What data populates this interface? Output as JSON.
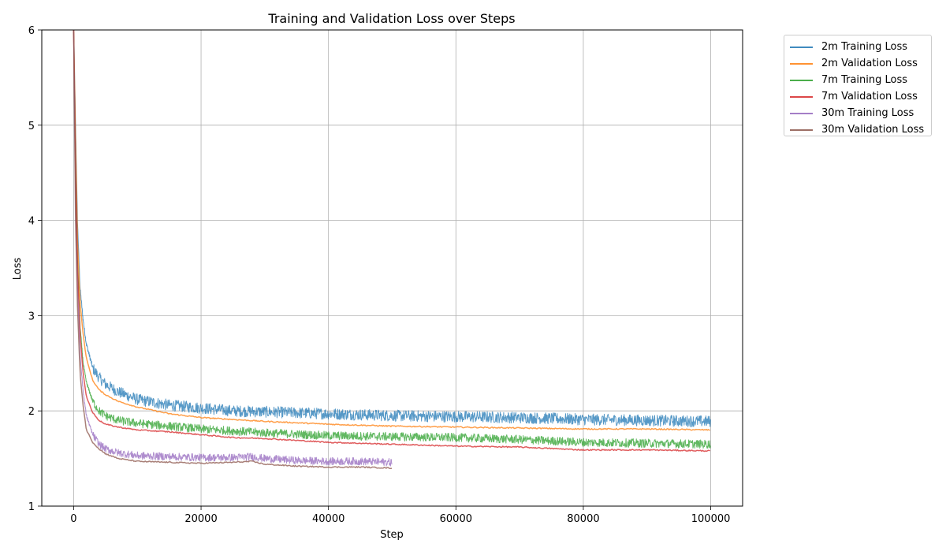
{
  "chart_data": {
    "type": "line",
    "title": "Training and Validation Loss over Steps",
    "xlabel": "Step",
    "ylabel": "Loss",
    "xlim": [
      -5000,
      105000
    ],
    "ylim": [
      1,
      6
    ],
    "x_ticks": [
      0,
      20000,
      40000,
      60000,
      80000,
      100000
    ],
    "y_ticks": [
      1,
      2,
      3,
      4,
      5,
      6
    ],
    "grid": true,
    "legend_position": "outside-top-right",
    "series": [
      {
        "name": "2m Training Loss",
        "color": "#1f77b4",
        "noisy": true,
        "noise_band": 0.06,
        "x": [
          0,
          300,
          600,
          1000,
          1500,
          2000,
          3000,
          4000,
          5000,
          7000,
          10000,
          15000,
          20000,
          25000,
          30000,
          40000,
          50000,
          60000,
          70000,
          80000,
          90000,
          100000
        ],
        "y": [
          6.1,
          5.0,
          4.0,
          3.3,
          2.95,
          2.7,
          2.45,
          2.35,
          2.28,
          2.2,
          2.12,
          2.06,
          2.03,
          2.0,
          1.99,
          1.97,
          1.95,
          1.94,
          1.93,
          1.91,
          1.9,
          1.89
        ]
      },
      {
        "name": "2m Validation Loss",
        "color": "#ff7f0e",
        "noisy": false,
        "x": [
          0,
          300,
          600,
          1000,
          1500,
          2000,
          3000,
          4000,
          5000,
          7000,
          10000,
          15000,
          20000,
          25000,
          30000,
          40000,
          50000,
          60000,
          70000,
          80000,
          90000,
          100000
        ],
        "y": [
          6.0,
          4.8,
          3.8,
          3.15,
          2.8,
          2.55,
          2.32,
          2.22,
          2.17,
          2.1,
          2.04,
          1.97,
          1.93,
          1.91,
          1.89,
          1.86,
          1.84,
          1.83,
          1.82,
          1.81,
          1.81,
          1.8
        ]
      },
      {
        "name": "7m Training Loss",
        "color": "#2ca02c",
        "noisy": true,
        "noise_band": 0.045,
        "x": [
          0,
          300,
          600,
          1000,
          1500,
          2000,
          3000,
          4000,
          5000,
          7000,
          10000,
          15000,
          20000,
          25000,
          30000,
          40000,
          50000,
          60000,
          70000,
          80000,
          90000,
          100000
        ],
        "y": [
          6.0,
          4.6,
          3.6,
          2.9,
          2.5,
          2.3,
          2.1,
          2.0,
          1.95,
          1.9,
          1.87,
          1.84,
          1.81,
          1.79,
          1.77,
          1.74,
          1.73,
          1.72,
          1.7,
          1.67,
          1.66,
          1.65
        ]
      },
      {
        "name": "7m Validation Loss",
        "color": "#d62728",
        "noisy": false,
        "x": [
          0,
          300,
          600,
          1000,
          1500,
          2000,
          3000,
          4000,
          5000,
          7000,
          10000,
          15000,
          20000,
          25000,
          30000,
          40000,
          50000,
          60000,
          70000,
          80000,
          90000,
          100000
        ],
        "y": [
          6.0,
          4.5,
          3.5,
          2.8,
          2.4,
          2.15,
          1.98,
          1.9,
          1.86,
          1.83,
          1.8,
          1.78,
          1.75,
          1.72,
          1.71,
          1.67,
          1.65,
          1.63,
          1.62,
          1.59,
          1.59,
          1.58
        ]
      },
      {
        "name": "30m Training Loss",
        "color": "#9467bd",
        "noisy": true,
        "noise_band": 0.04,
        "x": [
          0,
          300,
          600,
          1000,
          1500,
          2000,
          3000,
          4000,
          5000,
          7000,
          10000,
          15000,
          20000,
          25000,
          28000,
          30000,
          35000,
          40000,
          45000,
          50000
        ],
        "y": [
          6.0,
          4.2,
          3.3,
          2.6,
          2.2,
          1.95,
          1.75,
          1.65,
          1.6,
          1.56,
          1.53,
          1.52,
          1.51,
          1.51,
          1.52,
          1.5,
          1.48,
          1.47,
          1.47,
          1.46
        ]
      },
      {
        "name": "30m Validation Loss",
        "color": "#8c564b",
        "noisy": false,
        "x": [
          0,
          300,
          600,
          1000,
          1500,
          2000,
          3000,
          4000,
          5000,
          7000,
          10000,
          15000,
          20000,
          25000,
          28000,
          30000,
          35000,
          40000,
          45000,
          50000
        ],
        "y": [
          6.0,
          4.0,
          3.1,
          2.4,
          2.05,
          1.8,
          1.67,
          1.6,
          1.55,
          1.5,
          1.47,
          1.46,
          1.45,
          1.46,
          1.47,
          1.44,
          1.42,
          1.41,
          1.41,
          1.4
        ]
      }
    ]
  }
}
